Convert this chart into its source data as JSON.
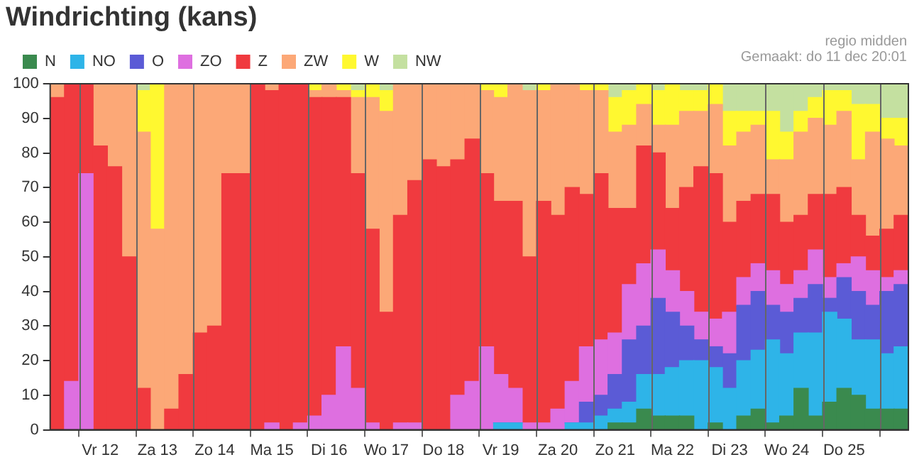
{
  "chart_data": {
    "type": "bar",
    "title": "Windrichting (kans)",
    "stacked": true,
    "annotations": [
      "regio midden",
      "Gemaakt: do 11 dec 20:01"
    ],
    "categories": [
      null,
      null,
      null,
      "Vr 12",
      null,
      null,
      null,
      "Za 13",
      null,
      null,
      null,
      "Zo 14",
      null,
      null,
      null,
      "Ma 15",
      null,
      null,
      null,
      "Di 16",
      null,
      null,
      null,
      "Wo 17",
      null,
      null,
      null,
      "Do 18",
      null,
      null,
      null,
      "Vr 19",
      null,
      null,
      null,
      "Za 20",
      null,
      null,
      null,
      "Zo 21",
      null,
      null,
      null,
      "Ma 22",
      null,
      null,
      null,
      "Di 23",
      null,
      null,
      null,
      "Wo 24",
      null,
      null,
      null,
      "Do 25",
      null,
      null,
      null,
      null
    ],
    "ylim": [
      0,
      100
    ],
    "yticks": [
      0,
      10,
      20,
      30,
      40,
      50,
      60,
      70,
      80,
      90,
      100
    ],
    "grid": "x",
    "legend": "top left",
    "series": [
      {
        "name": "N",
        "color": "#3a8a4e",
        "values": [
          0,
          0,
          0,
          0,
          0,
          0,
          0,
          0,
          0,
          0,
          0,
          0,
          0,
          0,
          0,
          0,
          0,
          0,
          0,
          0,
          0,
          0,
          0,
          0,
          0,
          0,
          0,
          0,
          0,
          0,
          0,
          0,
          0,
          0,
          0,
          0,
          0,
          0,
          0,
          2,
          2,
          6,
          4,
          4,
          4,
          0,
          2,
          0,
          4,
          6,
          2,
          4,
          12,
          4,
          8,
          12,
          10,
          6,
          6,
          6
        ]
      },
      {
        "name": "NO",
        "color": "#2eb4e8",
        "values": [
          0,
          0,
          0,
          0,
          0,
          0,
          0,
          0,
          0,
          0,
          0,
          0,
          0,
          0,
          0,
          0,
          0,
          0,
          0,
          0,
          0,
          0,
          0,
          0,
          0,
          0,
          0,
          0,
          0,
          0,
          0,
          2,
          2,
          0,
          0,
          0,
          2,
          2,
          4,
          4,
          6,
          10,
          12,
          14,
          16,
          20,
          16,
          12,
          16,
          17,
          24,
          18,
          16,
          24,
          26,
          20,
          16,
          20,
          16,
          18
        ]
      },
      {
        "name": "O",
        "color": "#5b5bd6",
        "values": [
          0,
          0,
          0,
          0,
          0,
          0,
          0,
          0,
          0,
          0,
          0,
          0,
          0,
          0,
          0,
          0,
          0,
          0,
          0,
          0,
          0,
          0,
          0,
          0,
          0,
          0,
          0,
          0,
          0,
          0,
          0,
          0,
          0,
          0,
          0,
          0,
          0,
          6,
          6,
          10,
          18,
          14,
          22,
          16,
          10,
          6,
          6,
          10,
          16,
          17,
          10,
          12,
          10,
          14,
          4,
          12,
          14,
          10,
          18,
          18
        ]
      },
      {
        "name": "ZO",
        "color": "#de6fe0",
        "values": [
          0,
          14,
          74,
          0,
          0,
          0,
          0,
          0,
          0,
          0,
          0,
          0,
          0,
          0,
          0,
          2,
          0,
          2,
          4,
          10,
          24,
          12,
          2,
          0,
          2,
          2,
          0,
          0,
          10,
          14,
          24,
          14,
          10,
          2,
          2,
          6,
          12,
          16,
          16,
          12,
          16,
          18,
          14,
          12,
          10,
          8,
          8,
          12,
          8,
          8,
          10,
          8,
          8,
          10,
          6,
          4,
          10,
          10,
          4,
          4
        ]
      },
      {
        "name": "Z",
        "color": "#f03a3f",
        "values": [
          96,
          86,
          26,
          82,
          76,
          50,
          12,
          0,
          6,
          16,
          28,
          30,
          74,
          74,
          100,
          96,
          100,
          98,
          92,
          86,
          72,
          62,
          56,
          34,
          60,
          70,
          78,
          76,
          68,
          70,
          50,
          50,
          54,
          48,
          64,
          56,
          56,
          44,
          48,
          36,
          22,
          34,
          28,
          18,
          30,
          42,
          42,
          26,
          22,
          20,
          22,
          18,
          16,
          16,
          24,
          22,
          12,
          10,
          14,
          16
        ]
      },
      {
        "name": "ZW",
        "color": "#fca877",
        "values": [
          4,
          0,
          0,
          18,
          24,
          50,
          74,
          58,
          94,
          84,
          72,
          70,
          26,
          26,
          0,
          2,
          0,
          0,
          2,
          4,
          2,
          22,
          38,
          58,
          38,
          28,
          22,
          24,
          22,
          16,
          24,
          30,
          34,
          48,
          32,
          38,
          30,
          30,
          24,
          22,
          24,
          12,
          8,
          24,
          22,
          16,
          20,
          22,
          20,
          20,
          10,
          18,
          24,
          22,
          20,
          22,
          16,
          30,
          26,
          20
        ]
      },
      {
        "name": "W",
        "color": "#fff830",
        "values": [
          0,
          0,
          0,
          0,
          0,
          0,
          12,
          42,
          0,
          0,
          0,
          0,
          0,
          0,
          0,
          0,
          0,
          0,
          2,
          0,
          2,
          2,
          4,
          6,
          0,
          0,
          0,
          0,
          0,
          0,
          2,
          4,
          0,
          0,
          2,
          0,
          0,
          2,
          2,
          10,
          10,
          6,
          10,
          12,
          6,
          6,
          6,
          10,
          6,
          4,
          14,
          8,
          6,
          6,
          10,
          6,
          16,
          8,
          6,
          8
        ]
      },
      {
        "name": "NW",
        "color": "#c4e0a0",
        "values": [
          0,
          0,
          0,
          0,
          0,
          0,
          2,
          0,
          0,
          0,
          0,
          0,
          0,
          0,
          0,
          0,
          0,
          0,
          0,
          0,
          0,
          2,
          0,
          2,
          0,
          0,
          0,
          0,
          0,
          0,
          0,
          0,
          0,
          2,
          0,
          0,
          0,
          0,
          0,
          4,
          2,
          0,
          2,
          0,
          2,
          2,
          0,
          8,
          8,
          8,
          8,
          14,
          8,
          4,
          2,
          2,
          6,
          6,
          10,
          10
        ]
      }
    ]
  }
}
